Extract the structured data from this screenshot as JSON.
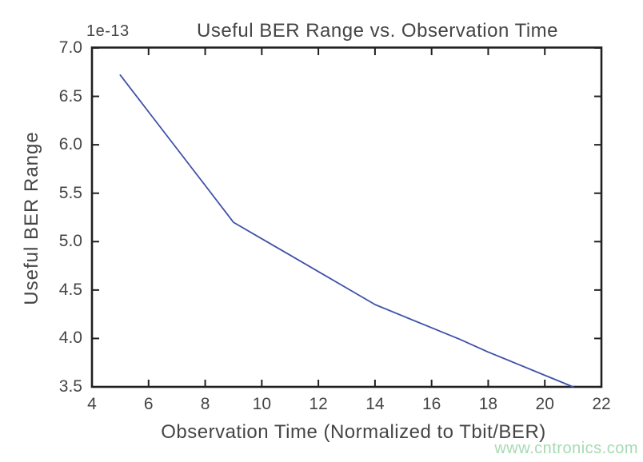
{
  "chart_data": {
    "type": "line",
    "title": "Useful BER Range vs. Observation Time",
    "xlabel": "Observation Time (Normalized to Tbit/BER)",
    "ylabel": "Useful BER Range",
    "y_offset_text": "1e-13",
    "xlim": [
      4,
      22
    ],
    "ylim": [
      3.5,
      7.0
    ],
    "x_ticks": [
      4,
      6,
      8,
      10,
      12,
      14,
      16,
      18,
      20,
      22
    ],
    "y_ticks": [
      "3.5",
      "4.0",
      "4.5",
      "5.0",
      "5.5",
      "6.0",
      "6.5",
      "7.0"
    ],
    "grid": false,
    "legend": null,
    "tick_style": "inward-all-four-spines",
    "series": [
      {
        "name": "Useful BER Range",
        "color": "#3f51a7",
        "points": [
          [
            5,
            6.72
          ],
          [
            6,
            6.34
          ],
          [
            7,
            5.96
          ],
          [
            8,
            5.58
          ],
          [
            9,
            5.2
          ],
          [
            10,
            5.03
          ],
          [
            11,
            4.86
          ],
          [
            12,
            4.69
          ],
          [
            13,
            4.52
          ],
          [
            14,
            4.35
          ],
          [
            15,
            4.23
          ],
          [
            16,
            4.11
          ],
          [
            17,
            3.99
          ],
          [
            18,
            3.86
          ],
          [
            19,
            3.74
          ],
          [
            20,
            3.62
          ],
          [
            21,
            3.5
          ]
        ]
      }
    ]
  },
  "watermark": {
    "text": "www.cntronics.com",
    "color": "#a6dab2"
  },
  "colors": {
    "axis": "#231f20",
    "text": "#454545",
    "line": "#3f51a7",
    "background": "#ffffff"
  }
}
